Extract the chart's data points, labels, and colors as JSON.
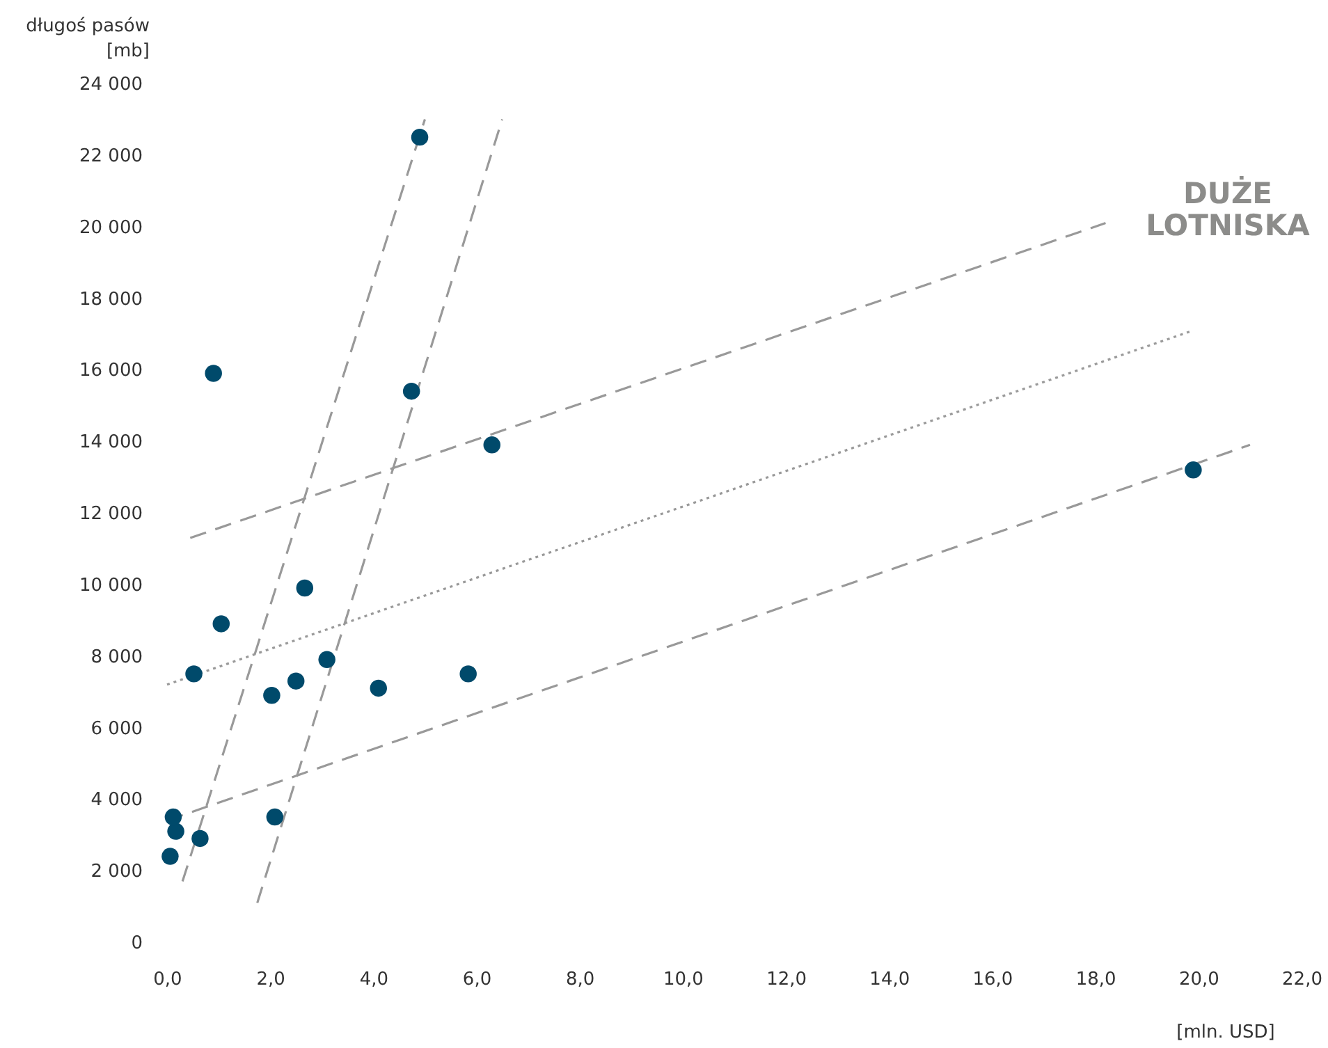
{
  "chart_data": {
    "type": "scatter",
    "xlabel": "[mln. USD]",
    "ylabel": "długoś pasów\n[mb]",
    "xlim": [
      0,
      22
    ],
    "ylim": [
      0,
      24000
    ],
    "xticks": [
      {
        "value": 0,
        "label": "0,0"
      },
      {
        "value": 2,
        "label": "2,0"
      },
      {
        "value": 4,
        "label": "4,0"
      },
      {
        "value": 6,
        "label": "6,0"
      },
      {
        "value": 8,
        "label": "8,0"
      },
      {
        "value": 10,
        "label": "10,0"
      },
      {
        "value": 12,
        "label": "12,0"
      },
      {
        "value": 14,
        "label": "14,0"
      },
      {
        "value": 16,
        "label": "16,0"
      },
      {
        "value": 18,
        "label": "18,0"
      },
      {
        "value": 20,
        "label": "20,0"
      },
      {
        "value": 22,
        "label": "22,0"
      }
    ],
    "yticks": [
      0,
      {
        "value": 2000,
        "label": "2 000"
      },
      {
        "value": 4000,
        "label": "4 000"
      },
      {
        "value": 6000,
        "label": "6 000"
      },
      {
        "value": 8000,
        "label": "8 000"
      },
      {
        "value": 10000,
        "label": "10 000"
      },
      {
        "value": 12000,
        "label": "12 000"
      },
      {
        "value": 14000,
        "label": "14 000"
      },
      {
        "value": 16000,
        "label": "16 000"
      },
      {
        "value": 18000,
        "label": "18 000"
      },
      {
        "value": 20000,
        "label": "20 000"
      },
      {
        "value": 22000,
        "label": "22 000"
      },
      {
        "value": 24000,
        "label": "24 000"
      }
    ],
    "grid": false,
    "series": [
      {
        "type": "line",
        "color": "#999999",
        "line_style": "dashed",
        "marker": "none",
        "x": [
          0.3,
          5.0
        ],
        "values": [
          1700,
          23000
        ]
      },
      {
        "type": "line",
        "color": "#999999",
        "line_style": "dashed",
        "marker": "none",
        "x": [
          1.75,
          6.5
        ],
        "values": [
          1100,
          23000
        ]
      },
      {
        "type": "line",
        "color": "#999999",
        "line_style": "dashed",
        "marker": "none",
        "x": [
          0.45,
          18.2
        ],
        "values": [
          11300,
          20100
        ]
      },
      {
        "type": "line",
        "color": "#999999",
        "line_style": "dotted",
        "marker": "none",
        "x": [
          0.0,
          19.9
        ],
        "values": [
          7200,
          17100
        ]
      },
      {
        "type": "line",
        "color": "#999999",
        "line_style": "dashed",
        "marker": "none",
        "x": [
          0.0,
          21.0
        ],
        "values": [
          3400,
          13900
        ]
      },
      {
        "color": "#004a6b",
        "marker": "circle",
        "x": [
          0.06,
          0.17,
          0.12,
          0.64,
          0.52,
          0.9,
          1.05,
          2.03,
          2.09,
          2.5,
          2.67,
          3.1,
          4.1,
          4.9,
          4.74,
          5.84,
          6.3,
          19.9
        ],
        "values": [
          2400,
          3100,
          3500,
          2900,
          7500,
          15900,
          8900,
          6900,
          3500,
          7300,
          9900,
          7900,
          7100,
          22500,
          15400,
          7500,
          13900,
          13200
        ]
      }
    ],
    "annotations": [
      "DUŻE\nLOTNISKA"
    ]
  }
}
